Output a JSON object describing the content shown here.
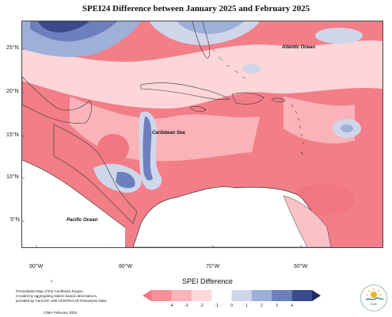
{
  "title": "SPEI24 Difference between January 2025 and February 2025",
  "axes": {
    "latitudes": [
      "25°N",
      "20°N",
      "15°N",
      "10°N",
      "5°N"
    ],
    "longitudes": [
      "90°W",
      "80°W",
      "70°W",
      "60°W"
    ]
  },
  "labels": {
    "atlantic": "Atlantic Ocean",
    "caribbean": "Caribbean Sea",
    "pacific": "Pacific Ocean"
  },
  "footnote": {
    "marker": "1",
    "line1": "Precipitation Map of the Caribbean Region.",
    "line2": "Created by aggregating station based observations,",
    "line3": "provided by CariCOF, with NCEP/NCAR Reanalysis Data.",
    "credit": "CIMH February 2025"
  },
  "legend": {
    "title": "SPEI Difference",
    "ticks": [
      "-4",
      "-3",
      "-2",
      "-1",
      "0",
      "1",
      "2",
      "3",
      "4"
    ],
    "colors": [
      "#f27680",
      "#f68f98",
      "#fab3b8",
      "#fcd6d8",
      "#ffffff",
      "#cfd6ea",
      "#9eb0d8",
      "#6d80bd",
      "#3a4a8c",
      "#1f2a66"
    ]
  },
  "logo": {
    "text": "CIMH"
  }
}
